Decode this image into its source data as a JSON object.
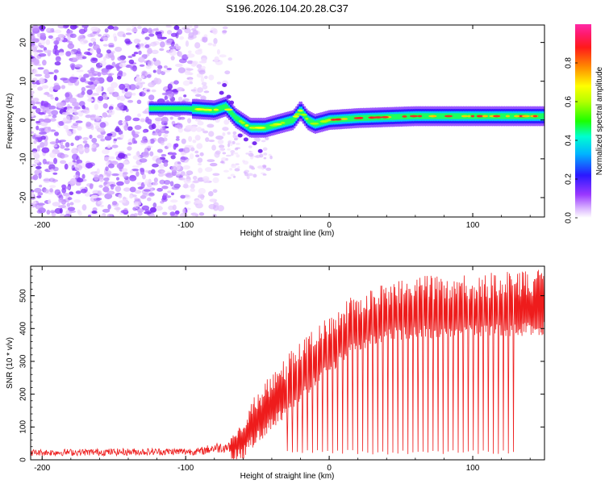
{
  "title": "S196.2026.104.20.28.C37",
  "colors": {
    "snr_line": "#ee1c1c",
    "frame": "#000000",
    "background": "#ffffff"
  },
  "chart_data": [
    {
      "type": "heatmap",
      "name": "spectrogram",
      "xlabel": "Height of straight line (km)",
      "ylabel": "Frequency (Hz)",
      "xlim": [
        -208,
        150
      ],
      "ylim": [
        -25,
        24.5
      ],
      "x_ticks": [
        -200,
        -100,
        0,
        100
      ],
      "y_ticks": [
        -20,
        -10,
        0,
        10,
        20
      ],
      "colorbar": {
        "label": "Normalized spectral amplitude",
        "range": [
          0,
          1
        ],
        "ticks": [
          "0.0",
          "0.2",
          "0.4",
          "0.6",
          "0.8"
        ],
        "tick_values": [
          0,
          0.2,
          0.4,
          0.6,
          0.8
        ],
        "colormap": "rainbow (white-violet-blue-cyan-green-yellow-red-magenta)"
      },
      "ridge": {
        "description": "dominant frequency ridge vs height",
        "x": [
          -125,
          -100,
          -80,
          -72,
          -65,
          -55,
          -45,
          -35,
          -25,
          -20,
          -15,
          -10,
          0,
          20,
          60,
          100,
          150
        ],
        "y": [
          3,
          3,
          2.5,
          3.5,
          0.5,
          -2,
          -2,
          -1,
          0,
          2.5,
          0,
          -1,
          0,
          0.5,
          1,
          1,
          1
        ]
      },
      "noise_region_x": [
        -208,
        -70
      ]
    },
    {
      "type": "line",
      "name": "snr",
      "xlabel": "Height of straight line (km)",
      "ylabel": "SNR (10 * v/v)",
      "xlim": [
        -208,
        150
      ],
      "ylim": [
        0,
        590
      ],
      "x_ticks": [
        -200,
        -100,
        0,
        100
      ],
      "y_ticks": [
        0,
        100,
        200,
        300,
        400,
        500
      ],
      "baseline_envelope": {
        "x": [
          -208,
          -90,
          -80,
          -70,
          -60,
          -50,
          -40,
          -30,
          -20,
          -10,
          0,
          10,
          20,
          40,
          60,
          100,
          150
        ],
        "y": [
          20,
          22,
          28,
          30,
          40,
          90,
          130,
          170,
          210,
          260,
          300,
          340,
          370,
          400,
          410,
          410,
          420
        ]
      },
      "peak_envelope": {
        "x": [
          -208,
          -90,
          -80,
          -70,
          -60,
          -50,
          -40,
          -30,
          -20,
          -10,
          0,
          10,
          20,
          40,
          60,
          100,
          150
        ],
        "y": [
          30,
          35,
          50,
          55,
          120,
          220,
          260,
          320,
          360,
          400,
          440,
          480,
          510,
          540,
          560,
          570,
          580
        ]
      },
      "dropout_start_x": -30,
      "dropout_end_x": 130
    }
  ]
}
